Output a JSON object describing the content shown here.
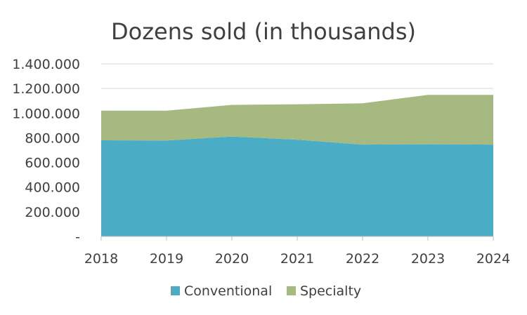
{
  "chart_data": {
    "type": "area",
    "stacked": true,
    "title": "Dozens sold (in thousands)",
    "categories": [
      "2018",
      "2019",
      "2020",
      "2021",
      "2022",
      "2023",
      "2024"
    ],
    "series": [
      {
        "name": "Conventional",
        "color": "#4bacc6",
        "values": [
          780000,
          778000,
          810000,
          785000,
          745000,
          748000,
          745000
        ]
      },
      {
        "name": "Specialty",
        "color": "#a6b981",
        "values": [
          240000,
          242000,
          257000,
          287000,
          335000,
          400000,
          403000
        ]
      }
    ],
    "ylim": [
      0,
      1400000
    ],
    "yticks": [
      {
        "value": 0,
        "label": "-"
      },
      {
        "value": 200000,
        "label": "200.000"
      },
      {
        "value": 400000,
        "label": "400.000"
      },
      {
        "value": 600000,
        "label": "600.000"
      },
      {
        "value": 800000,
        "label": "800.000"
      },
      {
        "value": 1000000,
        "label": "1.000.000"
      },
      {
        "value": 1200000,
        "label": "1.200.000"
      },
      {
        "value": 1400000,
        "label": "1.400.000"
      }
    ],
    "grid": true,
    "legend": "bottom"
  }
}
